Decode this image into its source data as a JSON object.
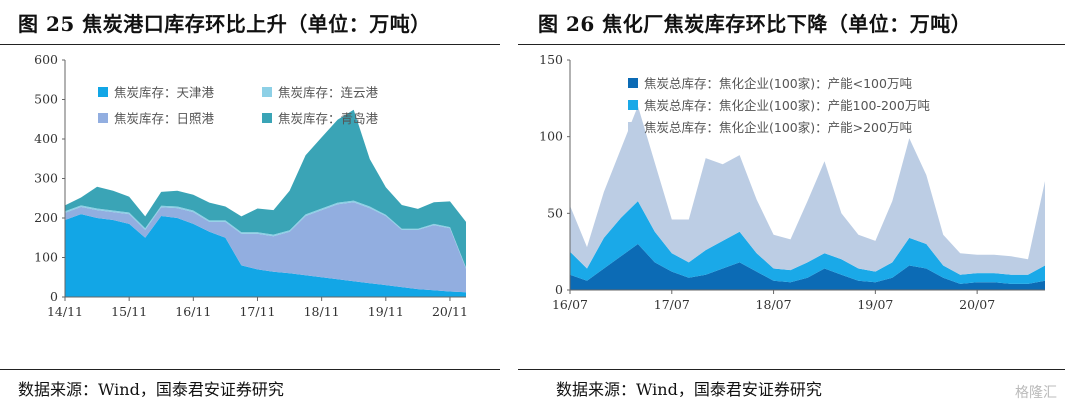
{
  "figures": {
    "left": {
      "title": "图 25 焦炭港口库存环比上升（单位：万吨）",
      "source": "数据来源：Wind，国泰君安证券研究"
    },
    "right": {
      "title": "图 26 焦化厂焦炭库存环比下降（单位：万吨）",
      "source": "数据来源：Wind，国泰君安证券研究"
    }
  },
  "watermark": "格隆汇",
  "chart_data": [
    {
      "type": "area",
      "stacked": true,
      "x": [
        0,
        3,
        6,
        9,
        12,
        15,
        18,
        21,
        24,
        27,
        30,
        33,
        36,
        39,
        42,
        45,
        48,
        51,
        54,
        57,
        60,
        63,
        66,
        69,
        72,
        75
      ],
      "x_ticks": [
        "14/11",
        "15/11",
        "16/11",
        "17/11",
        "18/11",
        "19/11",
        "20/11"
      ],
      "x_tick_positions": [
        0,
        12,
        24,
        36,
        48,
        60,
        72
      ],
      "ylim": [
        0,
        600
      ],
      "y_ticks": [
        0,
        100,
        200,
        300,
        400,
        500,
        600
      ],
      "series": [
        {
          "name": "焦炭库存：天津港",
          "color": "#12a6e6",
          "values": [
            195,
            210,
            200,
            195,
            185,
            150,
            205,
            200,
            185,
            165,
            150,
            80,
            70,
            64,
            60,
            55,
            50,
            45,
            40,
            35,
            30,
            25,
            20,
            17,
            14,
            12
          ]
        },
        {
          "name": "焦炭库存：日照港",
          "color": "#92aee0",
          "values": [
            18,
            18,
            20,
            20,
            25,
            20,
            22,
            25,
            30,
            25,
            40,
            80,
            90,
            90,
            105,
            150,
            170,
            190,
            200,
            190,
            175,
            145,
            150,
            165,
            160,
            60
          ]
        },
        {
          "name": "焦炭库存：连云港",
          "color": "#8dd0e6",
          "values": [
            4,
            4,
            4,
            4,
            4,
            4,
            4,
            4,
            4,
            4,
            4,
            4,
            4,
            4,
            4,
            4,
            4,
            4,
            4,
            4,
            3,
            3,
            3,
            3,
            3,
            3
          ]
        },
        {
          "name": "焦炭库存：青岛港",
          "color": "#3aa4b6",
          "values": [
            15,
            20,
            55,
            50,
            40,
            30,
            35,
            40,
            40,
            45,
            35,
            40,
            60,
            62,
            100,
            150,
            180,
            210,
            230,
            120,
            70,
            60,
            50,
            55,
            65,
            115
          ]
        }
      ]
    },
    {
      "type": "area",
      "stacked": true,
      "x": [
        0,
        2,
        4,
        6,
        8,
        10,
        12,
        14,
        16,
        18,
        20,
        22,
        24,
        26,
        28,
        30,
        32,
        34,
        36,
        38,
        40,
        42,
        44,
        46,
        48,
        50,
        52,
        54,
        56
      ],
      "x_ticks": [
        "16/07",
        "17/07",
        "18/07",
        "19/07",
        "20/07"
      ],
      "x_tick_positions": [
        0,
        12,
        24,
        36,
        48
      ],
      "ylim": [
        0,
        150
      ],
      "y_ticks": [
        0,
        50,
        100,
        150
      ],
      "series": [
        {
          "name": "焦炭总库存：焦化企业(100家)：产能<100万吨",
          "color": "#0c6bb5",
          "values": [
            10,
            6,
            14,
            22,
            30,
            18,
            12,
            8,
            10,
            14,
            18,
            12,
            6,
            5,
            8,
            14,
            10,
            6,
            5,
            8,
            16,
            14,
            8,
            4,
            5,
            5,
            4,
            4,
            6
          ]
        },
        {
          "name": "焦炭总库存：焦化企业(100家)：产能100-200万吨",
          "color": "#1aa9e8",
          "values": [
            15,
            8,
            20,
            25,
            28,
            20,
            12,
            10,
            16,
            18,
            20,
            12,
            8,
            8,
            10,
            10,
            10,
            8,
            7,
            10,
            18,
            16,
            8,
            6,
            6,
            6,
            6,
            6,
            10
          ]
        },
        {
          "name": "焦炭总库存：焦化企业(100家)：产能>200万吨",
          "color": "#bccde4",
          "values": [
            30,
            14,
            30,
            45,
            62,
            45,
            22,
            28,
            60,
            50,
            50,
            35,
            22,
            20,
            40,
            60,
            30,
            22,
            20,
            40,
            65,
            45,
            20,
            14,
            12,
            12,
            12,
            10,
            55
          ]
        }
      ]
    }
  ]
}
